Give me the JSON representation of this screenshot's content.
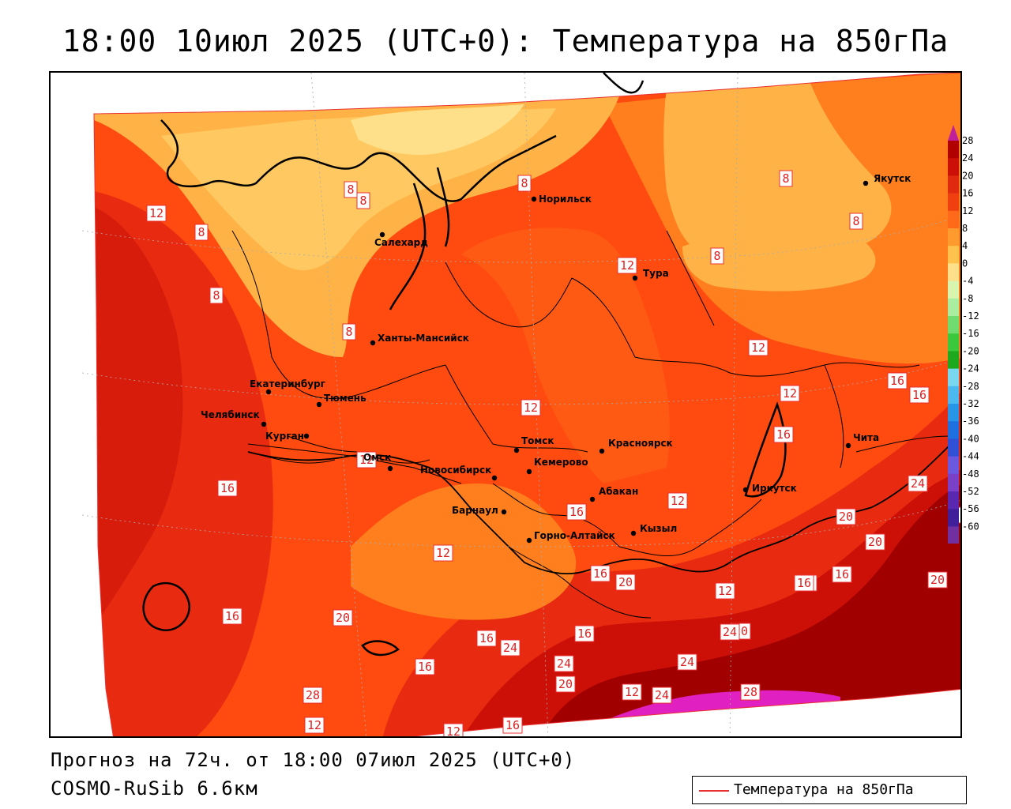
{
  "title": "18:00 10июл 2025 (UTC+0): Температура на 850гПа",
  "forecast_text": "Прогноз на 72ч. от 18:00 07июл 2025 (UTC+0)",
  "model_text": "COSMO-RuSib 6.6км",
  "legend_label": "Температура на 850гПа",
  "colors": {
    "contour_line": "#e83030",
    "band_0_4": "#ffe08a",
    "band_4_8": "#ffb347",
    "band_8_12": "#ff7f1e",
    "band_12_16": "#ff4a10",
    "band_16_20": "#e82a10",
    "band_20_24": "#cc1008",
    "band_24_28": "#a00000",
    "band_28_plus": "#e020c0"
  },
  "colorbar": {
    "labels": [
      "28",
      "24",
      "20",
      "16",
      "12",
      "8",
      "4",
      "0",
      "-4",
      "-8",
      "-12",
      "-16",
      "-20",
      "-24",
      "-28",
      "-32",
      "-36",
      "-40",
      "-44",
      "-48",
      "-52",
      "-56",
      "-60"
    ],
    "colors": [
      "#b00000",
      "#cc1008",
      "#e02a10",
      "#f04010",
      "#ff6a1a",
      "#ff9a2e",
      "#ffc24d",
      "#ffe08a",
      "#d8f5b0",
      "#a8eda0",
      "#70dc70",
      "#3cc83c",
      "#1ea81e",
      "#7ad7f0",
      "#4bb8f0",
      "#2896e8",
      "#1e6fe0",
      "#3050d8",
      "#6a58e0",
      "#7a40c8",
      "#5a28b0",
      "#40209a",
      "#7030a0"
    ],
    "top_color": "#c0209a",
    "bottom_color": "#8030c0"
  },
  "cities": [
    {
      "name": "Норильск"
    },
    {
      "name": "Якутск"
    },
    {
      "name": "Салехард"
    },
    {
      "name": "Тура"
    },
    {
      "name": "Ханты-Мансийск"
    },
    {
      "name": "Екатеринбург"
    },
    {
      "name": "Тюмень"
    },
    {
      "name": "Челябинск"
    },
    {
      "name": "Курган"
    },
    {
      "name": "Омск"
    },
    {
      "name": "Томск"
    },
    {
      "name": "Красноярск"
    },
    {
      "name": "Новосибирск"
    },
    {
      "name": "Кемерово"
    },
    {
      "name": "Абакан"
    },
    {
      "name": "Иркутск"
    },
    {
      "name": "Чита"
    },
    {
      "name": "Барнаул"
    },
    {
      "name": "Кызыл"
    },
    {
      "name": "Горно-Алтайск"
    }
  ],
  "contour_labels": [
    "12",
    "8",
    "8",
    "8",
    "8",
    "8",
    "8",
    "12",
    "8",
    "8",
    "8",
    "12",
    "12",
    "12",
    "12",
    "16",
    "16",
    "12",
    "16",
    "16",
    "12",
    "16",
    "20",
    "12",
    "12",
    "16",
    "16",
    "24",
    "16",
    "20",
    "20",
    "16",
    "20",
    "16",
    "24",
    "24",
    "20",
    "16",
    "16",
    "24",
    "20",
    "16",
    "16",
    "24",
    "20",
    "24",
    "28",
    "28",
    "12",
    "12",
    "16",
    "16",
    "12",
    "12",
    "24"
  ]
}
